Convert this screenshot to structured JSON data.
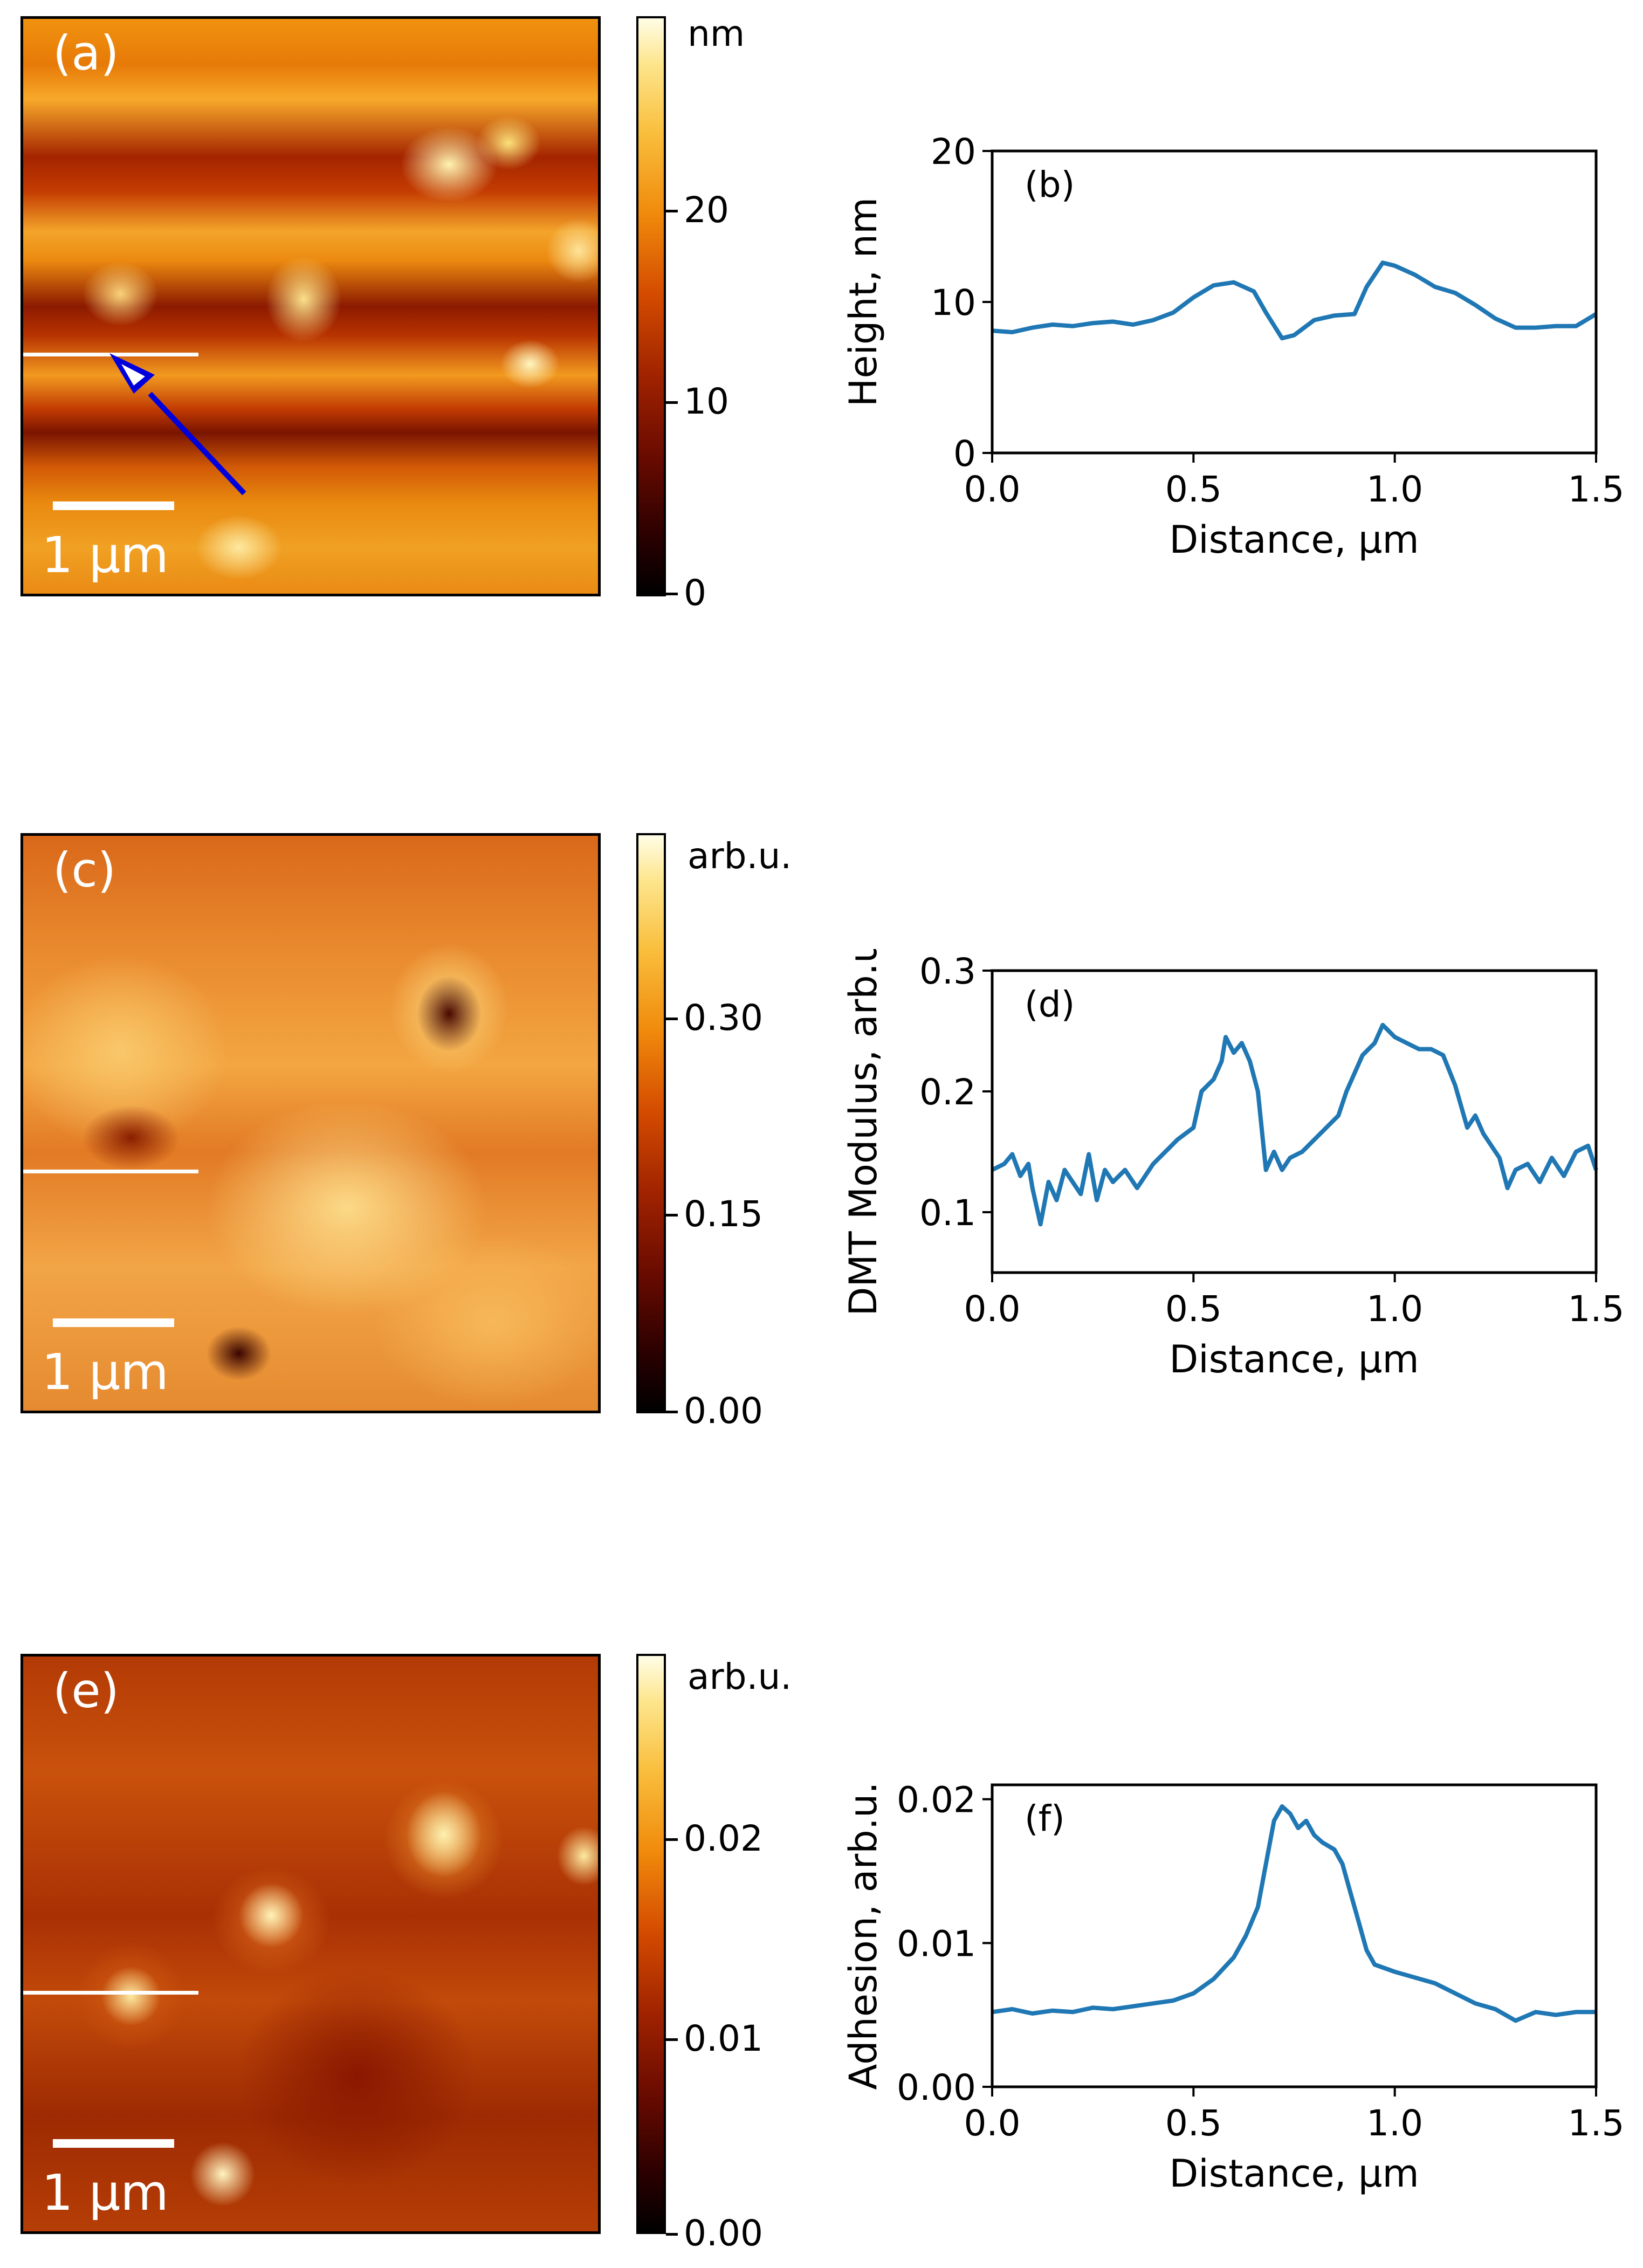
{
  "panels": [
    {
      "label": "(a)",
      "scale_text": "1 µm",
      "colorbar": {
        "unit": "nm",
        "ticks": [
          "20",
          "10",
          "0"
        ]
      }
    },
    {
      "label": "(c)",
      "scale_text": "1 µm",
      "colorbar": {
        "unit": "arb.u.",
        "ticks": [
          "0.30",
          "0.15",
          "0.00"
        ]
      }
    },
    {
      "label": "(e)",
      "scale_text": "1 µm",
      "colorbar": {
        "unit": "arb.u.",
        "ticks": [
          "0.02",
          "0.01",
          "0.00"
        ]
      }
    }
  ],
  "chart_data": [
    {
      "type": "line",
      "panel_label": "(b)",
      "xlabel": "Distance, µm",
      "ylabel": "Height, nm",
      "xlim": [
        0,
        1.5
      ],
      "ylim": [
        0,
        20
      ],
      "xticks": [
        "0.0",
        "0.5",
        "1.0",
        "1.5"
      ],
      "yticks": [
        "0",
        "10",
        "20"
      ],
      "line_color": "#1f77b4",
      "x": [
        0.0,
        0.05,
        0.1,
        0.15,
        0.2,
        0.25,
        0.3,
        0.35,
        0.4,
        0.45,
        0.5,
        0.55,
        0.6,
        0.65,
        0.68,
        0.72,
        0.75,
        0.8,
        0.85,
        0.9,
        0.93,
        0.97,
        1.0,
        1.05,
        1.1,
        1.15,
        1.2,
        1.25,
        1.3,
        1.35,
        1.4,
        1.45,
        1.5
      ],
      "y": [
        8.1,
        8.0,
        8.3,
        8.5,
        8.4,
        8.6,
        8.7,
        8.5,
        8.8,
        9.3,
        10.3,
        11.1,
        11.3,
        10.7,
        9.3,
        7.6,
        7.8,
        8.8,
        9.1,
        9.2,
        11.0,
        12.6,
        12.4,
        11.8,
        11.0,
        10.6,
        9.8,
        8.9,
        8.3,
        8.3,
        8.4,
        8.4,
        9.2
      ]
    },
    {
      "type": "line",
      "panel_label": "(d)",
      "xlabel": "Distance, µm",
      "ylabel": "DMT Modulus, arb.u.",
      "xlim": [
        0,
        1.5
      ],
      "ylim": [
        0.05,
        0.3
      ],
      "xticks": [
        "0.0",
        "0.5",
        "1.0",
        "1.5"
      ],
      "yticks": [
        "0.1",
        "0.2",
        "0.3"
      ],
      "line_color": "#1f77b4",
      "x": [
        0.0,
        0.03,
        0.05,
        0.07,
        0.09,
        0.1,
        0.12,
        0.14,
        0.16,
        0.18,
        0.2,
        0.22,
        0.24,
        0.26,
        0.28,
        0.3,
        0.33,
        0.36,
        0.4,
        0.43,
        0.46,
        0.5,
        0.52,
        0.55,
        0.57,
        0.58,
        0.6,
        0.62,
        0.64,
        0.66,
        0.68,
        0.7,
        0.72,
        0.74,
        0.77,
        0.8,
        0.83,
        0.86,
        0.88,
        0.9,
        0.92,
        0.95,
        0.97,
        1.0,
        1.03,
        1.06,
        1.09,
        1.12,
        1.15,
        1.18,
        1.2,
        1.22,
        1.24,
        1.26,
        1.28,
        1.3,
        1.33,
        1.36,
        1.39,
        1.42,
        1.45,
        1.48,
        1.5
      ],
      "y": [
        0.135,
        0.14,
        0.148,
        0.13,
        0.14,
        0.12,
        0.09,
        0.125,
        0.11,
        0.135,
        0.125,
        0.115,
        0.148,
        0.11,
        0.135,
        0.125,
        0.135,
        0.12,
        0.14,
        0.15,
        0.16,
        0.17,
        0.2,
        0.21,
        0.225,
        0.245,
        0.232,
        0.24,
        0.225,
        0.2,
        0.135,
        0.15,
        0.135,
        0.145,
        0.15,
        0.16,
        0.17,
        0.18,
        0.2,
        0.215,
        0.23,
        0.24,
        0.255,
        0.245,
        0.24,
        0.235,
        0.235,
        0.23,
        0.205,
        0.17,
        0.18,
        0.165,
        0.155,
        0.145,
        0.12,
        0.135,
        0.14,
        0.125,
        0.145,
        0.13,
        0.15,
        0.155,
        0.135
      ]
    },
    {
      "type": "line",
      "panel_label": "(f)",
      "xlabel": "Distance, µm",
      "ylabel": "Adhesion, arb.u.",
      "xlim": [
        0,
        1.5
      ],
      "ylim": [
        0,
        0.021
      ],
      "xticks": [
        "0.0",
        "0.5",
        "1.0",
        "1.5"
      ],
      "yticks": [
        "0.00",
        "0.01",
        "0.02"
      ],
      "line_color": "#1f77b4",
      "x": [
        0.0,
        0.05,
        0.1,
        0.15,
        0.2,
        0.25,
        0.3,
        0.35,
        0.4,
        0.45,
        0.5,
        0.55,
        0.6,
        0.63,
        0.66,
        0.68,
        0.7,
        0.72,
        0.74,
        0.76,
        0.78,
        0.8,
        0.82,
        0.85,
        0.87,
        0.89,
        0.91,
        0.93,
        0.95,
        0.98,
        1.0,
        1.05,
        1.1,
        1.15,
        1.2,
        1.25,
        1.3,
        1.35,
        1.4,
        1.45,
        1.5
      ],
      "y": [
        0.0052,
        0.0054,
        0.0051,
        0.0053,
        0.0052,
        0.0055,
        0.0054,
        0.0056,
        0.0058,
        0.006,
        0.0065,
        0.0075,
        0.009,
        0.0105,
        0.0125,
        0.0155,
        0.0185,
        0.0195,
        0.019,
        0.018,
        0.0185,
        0.0175,
        0.017,
        0.0165,
        0.0155,
        0.0135,
        0.0115,
        0.0095,
        0.0085,
        0.0082,
        0.008,
        0.0076,
        0.0072,
        0.0065,
        0.0058,
        0.0054,
        0.0046,
        0.0052,
        0.005,
        0.0052,
        0.0052
      ]
    }
  ]
}
